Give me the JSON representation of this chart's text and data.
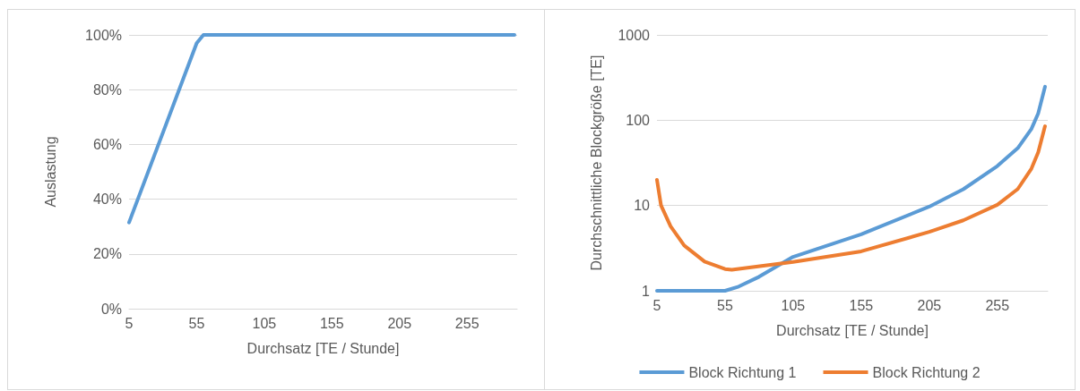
{
  "chart_data": [
    {
      "type": "line",
      "xlabel": "Durchsatz [TE / Stunde]",
      "ylabel": "Auslastung",
      "xlim": [
        5,
        292
      ],
      "xticks": [
        5,
        55,
        105,
        155,
        205,
        255
      ],
      "ylim": [
        0,
        100
      ],
      "yticks": [
        {
          "value": 0,
          "label": "0%"
        },
        {
          "value": 20,
          "label": "20%"
        },
        {
          "value": 40,
          "label": "40%"
        },
        {
          "value": 60,
          "label": "60%"
        },
        {
          "value": 80,
          "label": "80%"
        },
        {
          "value": 100,
          "label": "100%"
        }
      ],
      "grid": "y",
      "legend": false,
      "marker": "none",
      "line_style": "solid",
      "series": [
        {
          "color": "#5b9bd5",
          "x": [
            5,
            55,
            60,
            290
          ],
          "values": [
            31.5,
            97,
            100,
            100
          ]
        }
      ]
    },
    {
      "type": "line",
      "xlabel": "Durchsatz [TE / Stunde]",
      "ylabel": "Durchschnittliche Blockgröße [TE]",
      "xlim": [
        5,
        292
      ],
      "xticks": [
        5,
        55,
        105,
        155,
        205,
        255
      ],
      "ylim": [
        1,
        1000
      ],
      "yticks": [
        1,
        10,
        100,
        1000
      ],
      "log": "y",
      "grid": "y",
      "legend": "bottom",
      "marker": "none",
      "line_style": "solid",
      "series": [
        {
          "name": "Block Richtung 1",
          "color": "#5b9bd5",
          "x": [
            5,
            55,
            65,
            80,
            105,
            155,
            205,
            230,
            255,
            270,
            280,
            285,
            290
          ],
          "values": [
            1,
            1,
            1.12,
            1.46,
            2.5,
            4.6,
            9.7,
            15.5,
            29,
            47,
            79,
            120,
            247
          ]
        },
        {
          "name": "Block Richtung 2",
          "color": "#ed7d31",
          "x": [
            5,
            8,
            15,
            25,
            40,
            55,
            60,
            105,
            155,
            205,
            230,
            255,
            270,
            280,
            285,
            290
          ],
          "values": [
            20,
            10,
            5.7,
            3.4,
            2.2,
            1.8,
            1.76,
            2.18,
            2.9,
            4.9,
            6.7,
            10.2,
            15.6,
            27,
            42,
            85
          ]
        }
      ]
    }
  ]
}
